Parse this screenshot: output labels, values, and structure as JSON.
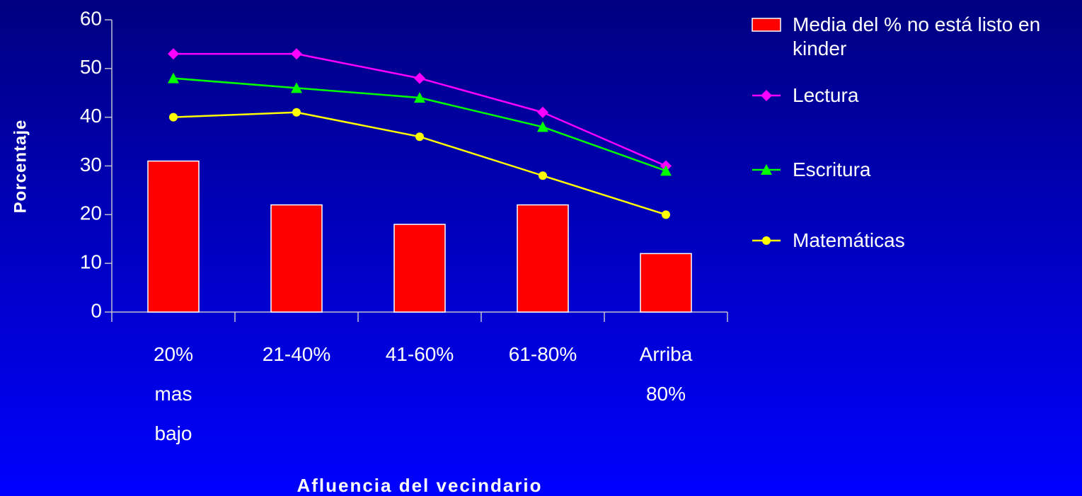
{
  "chart_data": {
    "type": "bar",
    "categories": [
      "20% mas bajo",
      "21-40%",
      "41-60%",
      "61-80%",
      "Arriba 80%"
    ],
    "series": [
      {
        "name": "Media del % no está listo en kinder",
        "type": "bar",
        "color": "#ff0000",
        "values": [
          31,
          22,
          18,
          22,
          12
        ]
      },
      {
        "name": "Lectura",
        "type": "line",
        "marker": "diamond",
        "color": "#ff00ff",
        "values": [
          53,
          53,
          48,
          41,
          30
        ]
      },
      {
        "name": "Escritura",
        "type": "line",
        "marker": "triangle",
        "color": "#00ff00",
        "values": [
          48,
          46,
          44,
          38,
          29
        ]
      },
      {
        "name": "Matemáticas",
        "type": "line",
        "marker": "circle",
        "color": "#ffff00",
        "values": [
          40,
          41,
          36,
          28,
          20
        ]
      }
    ],
    "ylabel": "Porcentaje",
    "xlabel": "Afluencia del vecindario",
    "ylim": [
      0,
      60
    ],
    "yticks": [
      0,
      10,
      20,
      30,
      40,
      50,
      60
    ],
    "legend": "right"
  }
}
